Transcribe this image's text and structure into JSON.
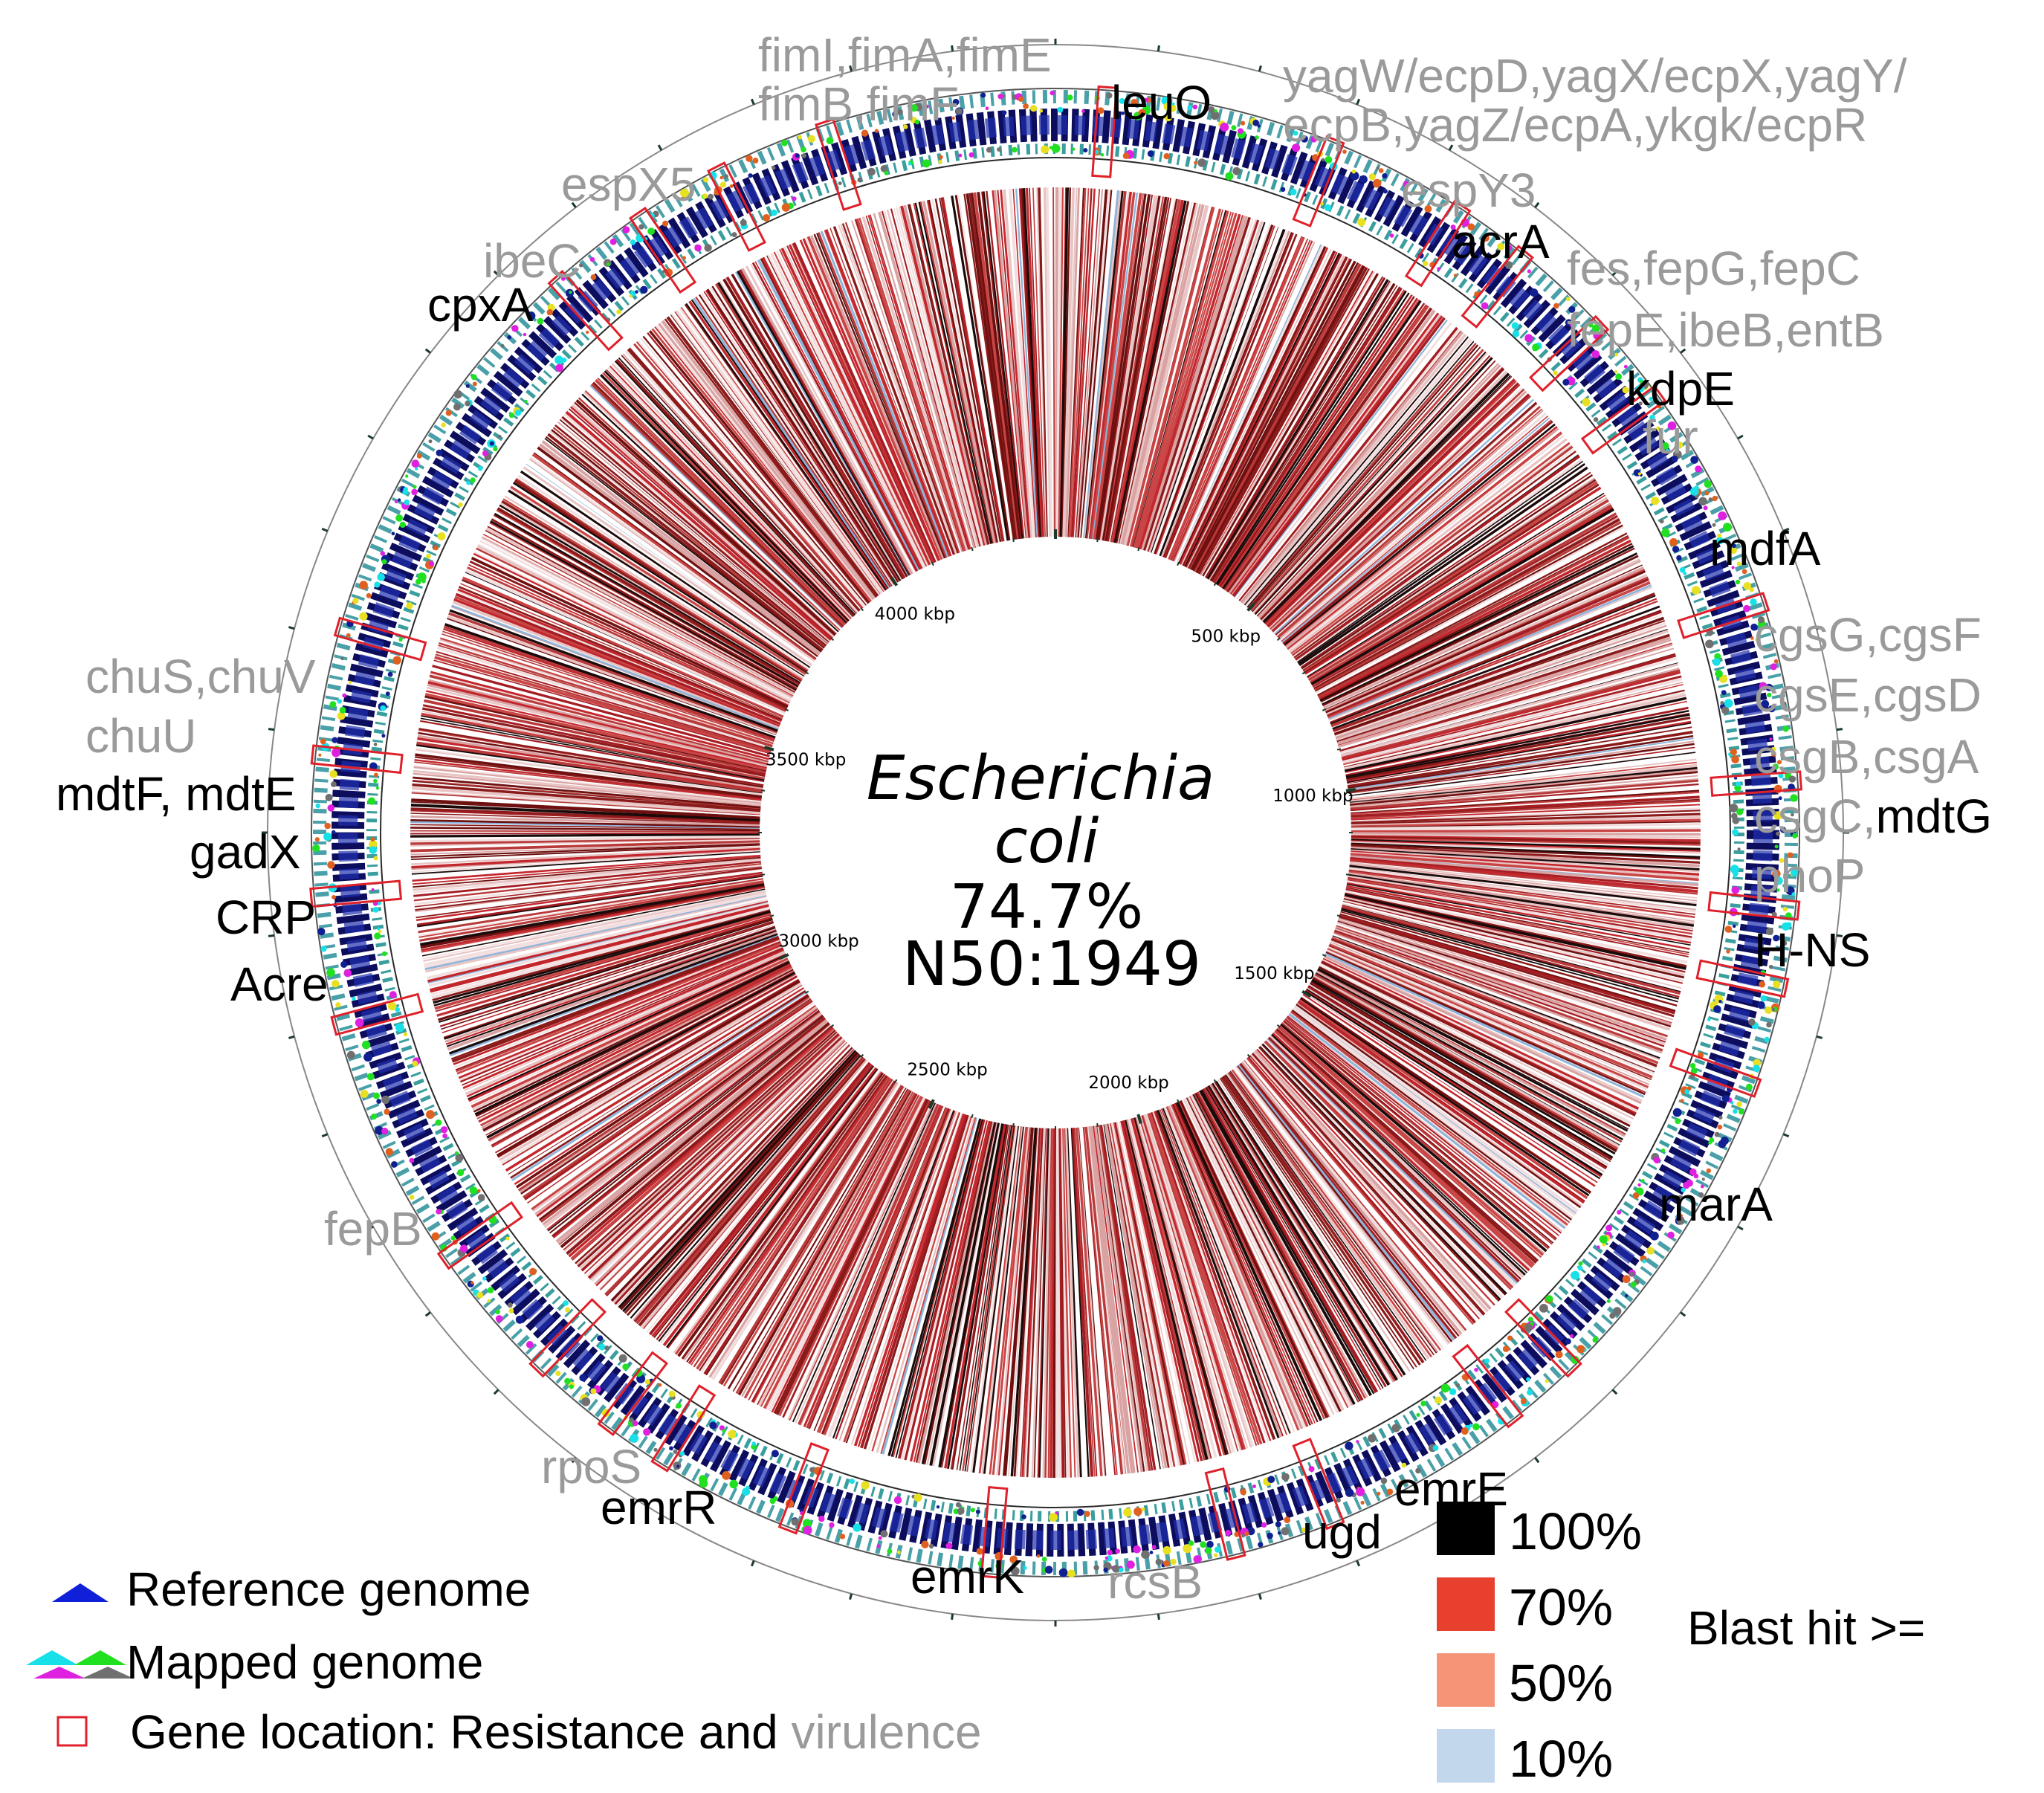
{
  "organism": {
    "line1": "Escherichia",
    "line2": "coli",
    "identity": "74.7%",
    "n50": "N50:1949"
  },
  "tick_labels": [
    "500 kbp",
    "1000 kbp",
    "1500 kbp",
    "2000 kbp",
    "2500 kbp",
    "3000 kbp",
    "3500 kbp",
    "4000 kbp"
  ],
  "gene_labels": [
    {
      "lines": [
        "fimI,fimA,fimE",
        "fimB,fimF"
      ],
      "category": "virulence"
    },
    {
      "lines": [
        "leuO"
      ],
      "category": "resistance"
    },
    {
      "lines": [
        "yagW/ecpD,yagX/ecpX,yagY/",
        "ecpB,yagZ/ecpA,ykgk/ecpR"
      ],
      "category": "virulence"
    },
    {
      "lines": [
        "espY3"
      ],
      "category": "virulence"
    },
    {
      "lines": [
        "espX5"
      ],
      "category": "virulence"
    },
    {
      "lines": [
        "acrA"
      ],
      "category": "resistance"
    },
    {
      "lines": [
        "ibeC"
      ],
      "category": "virulence"
    },
    {
      "lines": [
        "fes,fepG,fepC"
      ],
      "category": "virulence"
    },
    {
      "lines": [
        "cpxA"
      ],
      "category": "resistance"
    },
    {
      "lines": [
        "fepE,ibeB,entB"
      ],
      "category": "virulence"
    },
    {
      "lines": [
        "kdpE"
      ],
      "category": "resistance"
    },
    {
      "lines": [
        "fur"
      ],
      "category": "virulence"
    },
    {
      "lines": [
        "mdfA"
      ],
      "category": "resistance"
    },
    {
      "lines": [
        "cgsG,cgsF"
      ],
      "category": "virulence"
    },
    {
      "lines": [
        "cgsE,cgsD"
      ],
      "category": "virulence"
    },
    {
      "lines": [
        "csgB,csgA"
      ],
      "category": "virulence"
    },
    {
      "lines": [
        "chuS,chuV"
      ],
      "category": "virulence"
    },
    {
      "lines": [
        "chuU"
      ],
      "category": "virulence"
    },
    {
      "lines": [
        "mdtF, mdtE"
      ],
      "category": "resistance"
    },
    {
      "lines": [
        "gadX"
      ],
      "category": "resistance"
    },
    {
      "lines": [
        "CRP"
      ],
      "category": "resistance"
    },
    {
      "lines": [
        "Acre"
      ],
      "category": "resistance"
    },
    {
      "lines": [
        "phoP"
      ],
      "category": "virulence"
    },
    {
      "lines": [
        "H-NS"
      ],
      "category": "resistance"
    },
    {
      "lines": [
        "marA"
      ],
      "category": "resistance"
    },
    {
      "lines": [
        "fepB"
      ],
      "category": "virulence"
    },
    {
      "lines": [
        "rpoS"
      ],
      "category": "virulence"
    },
    {
      "lines": [
        "emrR"
      ],
      "category": "resistance"
    },
    {
      "lines": [
        "emrE"
      ],
      "category": "resistance"
    },
    {
      "lines": [
        "ugd"
      ],
      "category": "resistance"
    },
    {
      "lines": [
        "emrK"
      ],
      "category": "resistance"
    },
    {
      "lines": [
        "rcsB"
      ],
      "category": "virulence"
    }
  ],
  "csgC_label": {
    "part1": "csgC,",
    "part2": "mdtG"
  },
  "legend": {
    "reference": "Reference genome",
    "mapped": "Mapped genome",
    "gene_location": "Gene location:",
    "resistance_and": "Resistance and",
    "virulence": "virulence"
  },
  "blast_legend": {
    "title": "Blast hit >=",
    "items": [
      {
        "label": "100%",
        "color": "#000000"
      },
      {
        "label": "70%",
        "color": "#e8402f"
      },
      {
        "label": "50%",
        "color": "#f69478"
      },
      {
        "label": "10%",
        "color": "#c2d6ec"
      }
    ]
  },
  "colors": {
    "resistance_text": "#000000",
    "virulence_text": "#9a9a9a",
    "reference_arrow": "#1020d8",
    "gene_box": "#e0202a",
    "ring_dark": "#0d0d5e",
    "mapped_cyan": "#18e0e8",
    "mapped_magenta": "#e020e0",
    "mapped_green": "#20e020",
    "mapped_gray": "#707070"
  }
}
